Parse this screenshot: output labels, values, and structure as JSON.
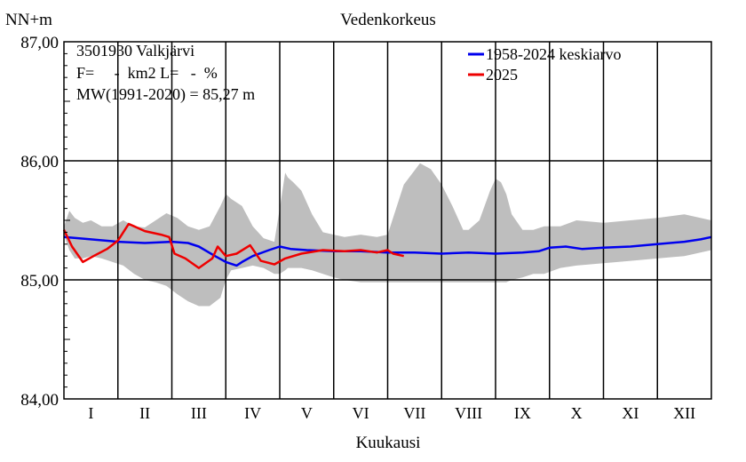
{
  "chart_data": {
    "type": "line",
    "title": "Vedenkorkeus",
    "ylabel": "NN+m",
    "xlabel": "Kuukausi",
    "ylim": [
      84.0,
      87.0
    ],
    "yticks": [
      "84,00",
      "85,00",
      "86,00",
      "87,00"
    ],
    "categories": [
      "I",
      "II",
      "III",
      "IV",
      "V",
      "VI",
      "VII",
      "VIII",
      "IX",
      "X",
      "XI",
      "XII"
    ],
    "grid": true,
    "legend_position": "top-right",
    "info_lines": [
      "3501930 Valkjärvi",
      "F=     -  km2 L=   -  %",
      "MW(1991-2020) = 85,27 m"
    ],
    "band": {
      "x": [
        0.0,
        0.1,
        0.2,
        0.35,
        0.5,
        0.7,
        0.9,
        1.1,
        1.3,
        1.5,
        1.7,
        1.9,
        2.1,
        2.3,
        2.5,
        2.7,
        2.9,
        3.0,
        3.1,
        3.3,
        3.5,
        3.7,
        3.9,
        4.0,
        4.1,
        4.15,
        4.25,
        4.4,
        4.6,
        4.8,
        5.0,
        5.2,
        5.5,
        5.8,
        6.0,
        6.3,
        6.6,
        6.8,
        7.0,
        7.2,
        7.4,
        7.5,
        7.7,
        7.9,
        8.0,
        8.1,
        8.2,
        8.3,
        8.5,
        8.7,
        8.9,
        9.2,
        9.5,
        10.0,
        10.5,
        11.0,
        11.5,
        12.0
      ],
      "upper": [
        85.45,
        85.58,
        85.52,
        85.48,
        85.5,
        85.45,
        85.45,
        85.5,
        85.45,
        85.44,
        85.5,
        85.56,
        85.52,
        85.45,
        85.42,
        85.45,
        85.62,
        85.72,
        85.68,
        85.62,
        85.45,
        85.35,
        85.32,
        85.6,
        85.9,
        85.86,
        85.82,
        85.75,
        85.55,
        85.4,
        85.38,
        85.36,
        85.38,
        85.36,
        85.38,
        85.8,
        85.98,
        85.93,
        85.8,
        85.62,
        85.42,
        85.42,
        85.5,
        85.75,
        85.85,
        85.82,
        85.72,
        85.55,
        85.42,
        85.42,
        85.45,
        85.45,
        85.5,
        85.48,
        85.5,
        85.52,
        85.55,
        85.5
      ],
      "lower": [
        85.38,
        85.25,
        85.18,
        85.18,
        85.2,
        85.18,
        85.15,
        85.12,
        85.05,
        85.0,
        84.98,
        84.95,
        84.88,
        84.82,
        84.78,
        84.78,
        84.85,
        85.0,
        85.08,
        85.1,
        85.12,
        85.1,
        85.05,
        85.05,
        85.08,
        85.1,
        85.1,
        85.1,
        85.08,
        85.05,
        85.02,
        85.0,
        84.98,
        84.98,
        84.98,
        84.98,
        84.98,
        84.98,
        84.98,
        84.98,
        84.98,
        84.98,
        84.98,
        84.98,
        84.98,
        84.98,
        84.98,
        85.0,
        85.02,
        85.05,
        85.05,
        85.1,
        85.12,
        85.14,
        85.16,
        85.18,
        85.2,
        85.25
      ]
    },
    "series": [
      {
        "name": "1958-2024 keskiarvo",
        "color": "#0000ee",
        "x": [
          0.0,
          0.5,
          1.0,
          1.5,
          2.0,
          2.3,
          2.5,
          2.8,
          3.0,
          3.2,
          3.3,
          3.5,
          3.8,
          4.0,
          4.2,
          4.5,
          5.0,
          5.5,
          6.0,
          6.5,
          7.0,
          7.5,
          8.0,
          8.5,
          8.8,
          9.0,
          9.3,
          9.6,
          10.0,
          10.5,
          11.0,
          11.5,
          11.8,
          12.0
        ],
        "values": [
          85.36,
          85.34,
          85.32,
          85.31,
          85.32,
          85.31,
          85.28,
          85.2,
          85.15,
          85.12,
          85.15,
          85.2,
          85.25,
          85.28,
          85.26,
          85.25,
          85.24,
          85.24,
          85.23,
          85.23,
          85.22,
          85.23,
          85.22,
          85.23,
          85.24,
          85.27,
          85.28,
          85.26,
          85.27,
          85.28,
          85.3,
          85.32,
          85.34,
          85.36
        ]
      },
      {
        "name": "2025",
        "color": "#ee0000",
        "x": [
          0.0,
          0.15,
          0.35,
          0.55,
          0.8,
          1.0,
          1.2,
          1.3,
          1.5,
          1.8,
          1.95,
          2.05,
          2.25,
          2.5,
          2.75,
          2.85,
          3.0,
          3.2,
          3.45,
          3.65,
          3.9,
          4.1,
          4.4,
          4.8,
          5.2,
          5.5,
          5.8,
          6.0,
          6.1,
          6.3
        ],
        "values": [
          85.42,
          85.28,
          85.15,
          85.2,
          85.26,
          85.33,
          85.47,
          85.45,
          85.41,
          85.38,
          85.36,
          85.22,
          85.18,
          85.1,
          85.18,
          85.28,
          85.2,
          85.22,
          85.29,
          85.16,
          85.13,
          85.18,
          85.22,
          85.25,
          85.24,
          85.25,
          85.23,
          85.25,
          85.22,
          85.2
        ]
      }
    ]
  }
}
